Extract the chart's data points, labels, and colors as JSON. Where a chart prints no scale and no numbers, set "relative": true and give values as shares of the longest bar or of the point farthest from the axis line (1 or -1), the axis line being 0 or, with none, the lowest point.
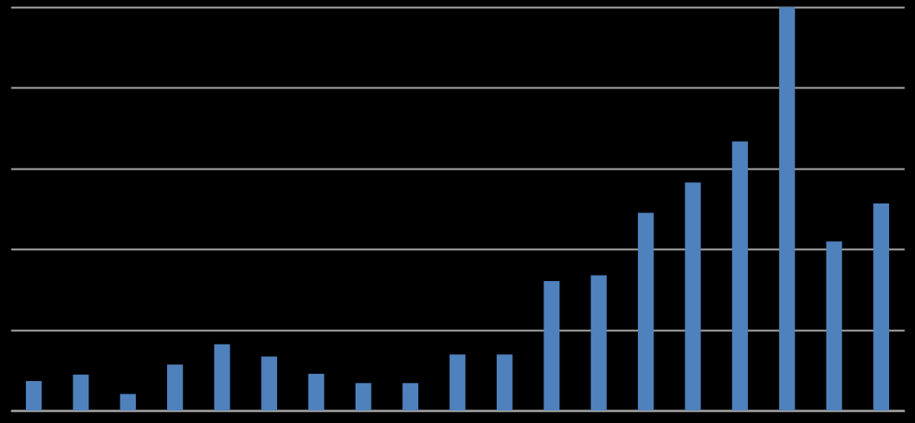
{
  "chart_data": {
    "type": "bar",
    "relative": true,
    "grid": true,
    "categories": [
      null,
      null,
      null,
      null,
      null,
      null,
      null,
      null,
      null,
      null,
      null,
      null,
      null,
      null,
      null,
      null,
      null,
      null,
      null
    ],
    "series": [
      {
        "color": "#4f81bd",
        "values": [
          0.073,
          0.089,
          0.041,
          0.114,
          0.164,
          0.134,
          0.091,
          0.068,
          0.068,
          0.139,
          0.139,
          0.321,
          0.335,
          0.49,
          0.565,
          0.667,
          1,
          0.419,
          0.513
        ]
      }
    ]
  }
}
